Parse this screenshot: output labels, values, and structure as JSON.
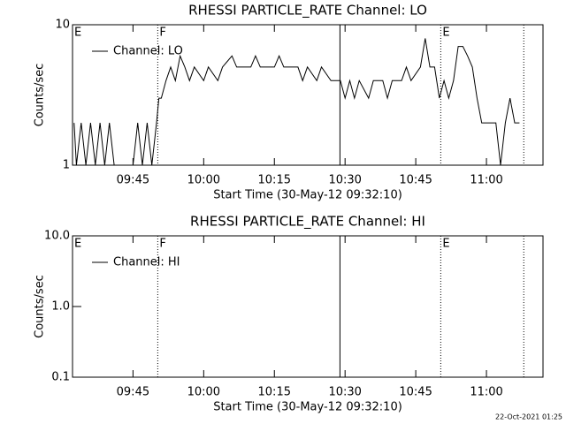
{
  "chart_data": [
    {
      "type": "line",
      "title": "RHESSI PARTICLE_RATE Channel: LO",
      "x_label": "Start Time (30-May-12 09:32:10)",
      "y_label": "Counts/sec",
      "xlim": [
        "09:32:10",
        "11:12:00"
      ],
      "xticks": [
        "09:45",
        "10:00",
        "10:15",
        "10:30",
        "10:45",
        "11:00"
      ],
      "ylim": [
        1,
        10
      ],
      "yticks": [
        1,
        10
      ],
      "log_y": true,
      "legend": "top-left",
      "events": [
        {
          "time": "09:50:15",
          "style": "dotted"
        },
        {
          "time": "10:28:55",
          "style": "solid"
        },
        {
          "time": "10:50:18",
          "style": "dotted"
        },
        {
          "time": "11:07:55",
          "style": "dotted"
        }
      ],
      "event_labels": [
        {
          "time": "09:32:10",
          "label": "E"
        },
        {
          "time": "09:50:15",
          "label": "F"
        },
        {
          "time": "10:50:18",
          "label": "E"
        }
      ],
      "series": [
        {
          "name": "Channel: LO",
          "color": "#000000",
          "x": [
            "09:32:30",
            "09:33",
            "09:34",
            "09:35",
            "09:36",
            "09:37",
            "09:38",
            "09:39",
            "09:40",
            "09:41",
            "09:43",
            "09:45",
            "09:46",
            "09:47",
            "09:48",
            "09:49",
            "09:50",
            "09:50:30",
            "09:51",
            "09:52",
            "09:53",
            "09:54",
            "09:55",
            "09:56",
            "09:57",
            "09:58",
            "10:00",
            "10:01",
            "10:03",
            "10:04",
            "10:06",
            "10:07",
            "10:10",
            "10:11",
            "10:12",
            "10:15",
            "10:16",
            "10:17",
            "10:20",
            "10:21",
            "10:22",
            "10:24",
            "10:25",
            "10:27",
            "10:29",
            "10:30",
            "10:31",
            "10:32",
            "10:33",
            "10:35",
            "10:36",
            "10:38",
            "10:39",
            "10:40",
            "10:42",
            "10:43",
            "10:44",
            "10:46",
            "10:47",
            "10:48",
            "10:49",
            "10:50",
            "10:51",
            "10:52",
            "10:53",
            "10:54",
            "10:55",
            "10:56",
            "10:57",
            "10:58",
            "10:59",
            "11:00",
            "11:02",
            "11:03",
            "11:04",
            "11:05",
            "11:06",
            "11:07"
          ],
          "values": [
            2,
            1,
            2,
            1,
            2,
            1,
            2,
            1,
            2,
            1,
            1,
            1,
            2,
            1,
            2,
            1,
            2,
            3,
            3,
            4,
            5,
            4,
            6,
            5,
            4,
            5,
            4,
            5,
            4,
            5,
            6,
            5,
            5,
            6,
            5,
            5,
            6,
            5,
            5,
            4,
            5,
            4,
            5,
            4,
            4,
            3,
            4,
            3,
            4,
            3,
            4,
            4,
            3,
            4,
            4,
            5,
            4,
            5,
            8,
            5,
            5,
            3,
            4,
            3,
            4,
            7,
            7,
            6,
            5,
            3,
            2,
            2,
            2,
            1,
            2,
            3,
            2,
            2
          ]
        }
      ]
    },
    {
      "type": "line",
      "title": "RHESSI PARTICLE_RATE Channel: HI",
      "x_label": "Start Time (30-May-12 09:32:10)",
      "y_label": "Counts/sec",
      "xlim": [
        "09:32:10",
        "11:12:00"
      ],
      "xticks": [
        "09:45",
        "10:00",
        "10:15",
        "10:30",
        "10:45",
        "11:00"
      ],
      "ylim": [
        0.1,
        10
      ],
      "yticks": [
        {
          "value": 0.1,
          "label": "0.1"
        },
        {
          "value": 1,
          "label": "1.0"
        },
        {
          "value": 10,
          "label": "10.0"
        }
      ],
      "log_y": true,
      "legend": "top-left",
      "events": [
        {
          "time": "09:50:15",
          "style": "dotted"
        },
        {
          "time": "10:28:55",
          "style": "solid"
        },
        {
          "time": "10:50:18",
          "style": "dotted"
        },
        {
          "time": "11:07:55",
          "style": "dotted"
        }
      ],
      "event_labels": [
        {
          "time": "09:32:10",
          "label": "E"
        },
        {
          "time": "09:50:15",
          "label": "F"
        },
        {
          "time": "10:50:18",
          "label": "E"
        }
      ],
      "series": [
        {
          "name": "Channel: HI",
          "color": "#000000",
          "x": [],
          "values": []
        }
      ]
    }
  ],
  "timestamp": "22-Oct-2021 01:25"
}
